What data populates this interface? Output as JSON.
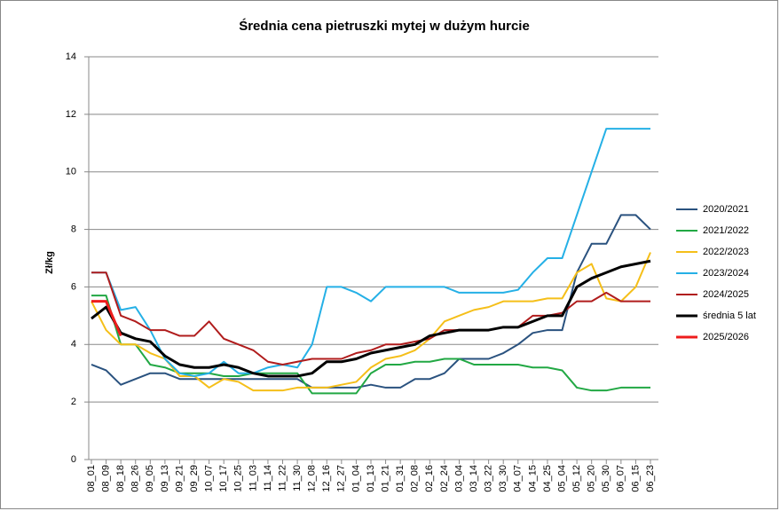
{
  "chart_data": {
    "type": "line",
    "title": "Średnia cena pietruszki mytej w dużym hurcie",
    "y_label": "Zł/kg",
    "categories": [
      "08_01",
      "08_09",
      "08_18",
      "08_26",
      "09_05",
      "09_13",
      "09_21",
      "09_29",
      "10_07",
      "10_17",
      "10_25",
      "11_03",
      "11_14",
      "11_22",
      "11_30",
      "12_08",
      "12_16",
      "12_27",
      "01_04",
      "01_13",
      "01_21",
      "01_31",
      "02_08",
      "02_16",
      "02_24",
      "03_04",
      "03_14",
      "03_22",
      "03_30",
      "04_07",
      "04_15",
      "04_25",
      "05_04",
      "05_12",
      "05_20",
      "05_30",
      "06_07",
      "06_15",
      "06_23"
    ],
    "ylim": [
      0,
      14
    ],
    "yticks": [
      0,
      2,
      4,
      6,
      8,
      10,
      12,
      14
    ],
    "grid": true,
    "legend": "right",
    "series": [
      {
        "name": "2020/2021",
        "color": "#2a527f",
        "values": [
          3.3,
          3.1,
          2.6,
          2.8,
          3.0,
          3.0,
          2.8,
          2.8,
          2.8,
          2.8,
          2.8,
          2.8,
          2.8,
          2.8,
          2.8,
          2.5,
          2.5,
          2.5,
          2.5,
          2.6,
          2.5,
          2.5,
          2.8,
          2.8,
          3.0,
          3.5,
          3.5,
          3.5,
          3.7,
          4.0,
          4.4,
          4.5,
          4.5,
          6.5,
          7.5,
          7.5,
          8.5,
          8.5,
          8.0
        ]
      },
      {
        "name": "2021/2022",
        "color": "#22a844",
        "values": [
          5.7,
          5.7,
          4.0,
          4.0,
          3.3,
          3.2,
          3.0,
          3.0,
          3.0,
          2.9,
          2.9,
          3.0,
          3.0,
          3.0,
          3.0,
          2.3,
          2.3,
          2.3,
          2.3,
          3.0,
          3.3,
          3.3,
          3.4,
          3.4,
          3.5,
          3.5,
          3.3,
          3.3,
          3.3,
          3.3,
          3.2,
          3.2,
          3.1,
          2.5,
          2.4,
          2.4,
          2.5,
          2.5,
          2.5
        ]
      },
      {
        "name": "2022/2023",
        "color": "#f5bf19",
        "values": [
          5.5,
          4.5,
          4.0,
          4.0,
          3.7,
          3.5,
          2.9,
          2.9,
          2.5,
          2.8,
          2.7,
          2.4,
          2.4,
          2.4,
          2.5,
          2.5,
          2.5,
          2.6,
          2.7,
          3.2,
          3.5,
          3.6,
          3.8,
          4.2,
          4.8,
          5.0,
          5.2,
          5.3,
          5.5,
          5.5,
          5.5,
          5.6,
          5.6,
          6.5,
          6.8,
          5.6,
          5.5,
          6.0,
          7.2
        ]
      },
      {
        "name": "2023/2024",
        "color": "#25b0e6",
        "values": [
          6.5,
          6.5,
          5.2,
          5.3,
          4.5,
          3.5,
          3.0,
          2.9,
          3.0,
          3.4,
          3.0,
          3.0,
          3.2,
          3.3,
          3.2,
          4.0,
          6.0,
          6.0,
          5.8,
          5.5,
          6.0,
          6.0,
          6.0,
          6.0,
          6.0,
          5.8,
          5.8,
          5.8,
          5.8,
          5.9,
          6.5,
          7.0,
          7.0,
          8.5,
          10.0,
          11.5,
          11.5,
          11.5,
          11.5
        ]
      },
      {
        "name": "2024/2025",
        "color": "#b01c1c",
        "values": [
          6.5,
          6.5,
          5.0,
          4.8,
          4.5,
          4.5,
          4.3,
          4.3,
          4.8,
          4.2,
          4.0,
          3.8,
          3.4,
          3.3,
          3.4,
          3.5,
          3.5,
          3.5,
          3.7,
          3.8,
          4.0,
          4.0,
          4.1,
          4.2,
          4.5,
          4.5,
          4.5,
          4.5,
          4.6,
          4.6,
          5.0,
          5.0,
          5.1,
          5.5,
          5.5,
          5.8,
          5.5,
          5.5,
          5.5
        ]
      },
      {
        "name": "średnia 5 lat",
        "color": "#000000",
        "values": [
          4.9,
          5.3,
          4.4,
          4.2,
          4.1,
          3.6,
          3.3,
          3.2,
          3.2,
          3.3,
          3.2,
          3.0,
          2.9,
          2.9,
          2.9,
          3.0,
          3.4,
          3.4,
          3.5,
          3.7,
          3.8,
          3.9,
          4.0,
          4.3,
          4.4,
          4.5,
          4.5,
          4.5,
          4.6,
          4.6,
          4.8,
          5.0,
          5.0,
          6.0,
          6.3,
          6.5,
          6.7,
          6.8,
          6.9
        ]
      },
      {
        "name": "2025/2026",
        "color": "#ee1c1c",
        "values": [
          5.5,
          5.5,
          4.3,
          null,
          null,
          null,
          null,
          null,
          null,
          null,
          null,
          null,
          null,
          null,
          null,
          null,
          null,
          null,
          null,
          null,
          null,
          null,
          null,
          null,
          null,
          null,
          null,
          null,
          null,
          null,
          null,
          null,
          null,
          null,
          null,
          null,
          null,
          null,
          null
        ]
      }
    ]
  }
}
